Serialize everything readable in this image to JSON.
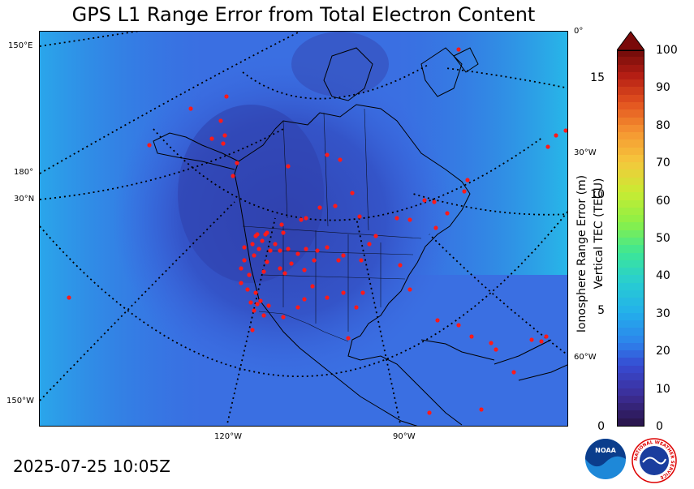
{
  "title": "GPS L1 Range Error from Total Electron Content",
  "timestamp": "2025-07-25 10:05Z",
  "map": {
    "grid_labels_left": [
      "150°E",
      "180°",
      "30°N",
      "150°W"
    ],
    "grid_labels_bottom": [
      "120°W",
      "90°W"
    ],
    "grid_labels_right": [
      "0°",
      "30°W",
      "60°W"
    ],
    "station_color": "#ff1a1a",
    "coastline_color": "#000000"
  },
  "colorbar": {
    "right_label": "Vertical TEC (TECU)",
    "right_ticks": [
      "0",
      "10",
      "20",
      "30",
      "40",
      "50",
      "60",
      "70",
      "80",
      "90",
      "100"
    ],
    "left_label": "Ionosphere Range Error (m)",
    "left_ticks": [
      "0",
      "5",
      "10",
      "15"
    ],
    "tec_range": [
      0,
      100
    ],
    "range_error_range": [
      0,
      16.2
    ]
  },
  "logos": {
    "noaa": "NOAA",
    "nws": "NATIONAL WEATHER SERVICE"
  }
}
